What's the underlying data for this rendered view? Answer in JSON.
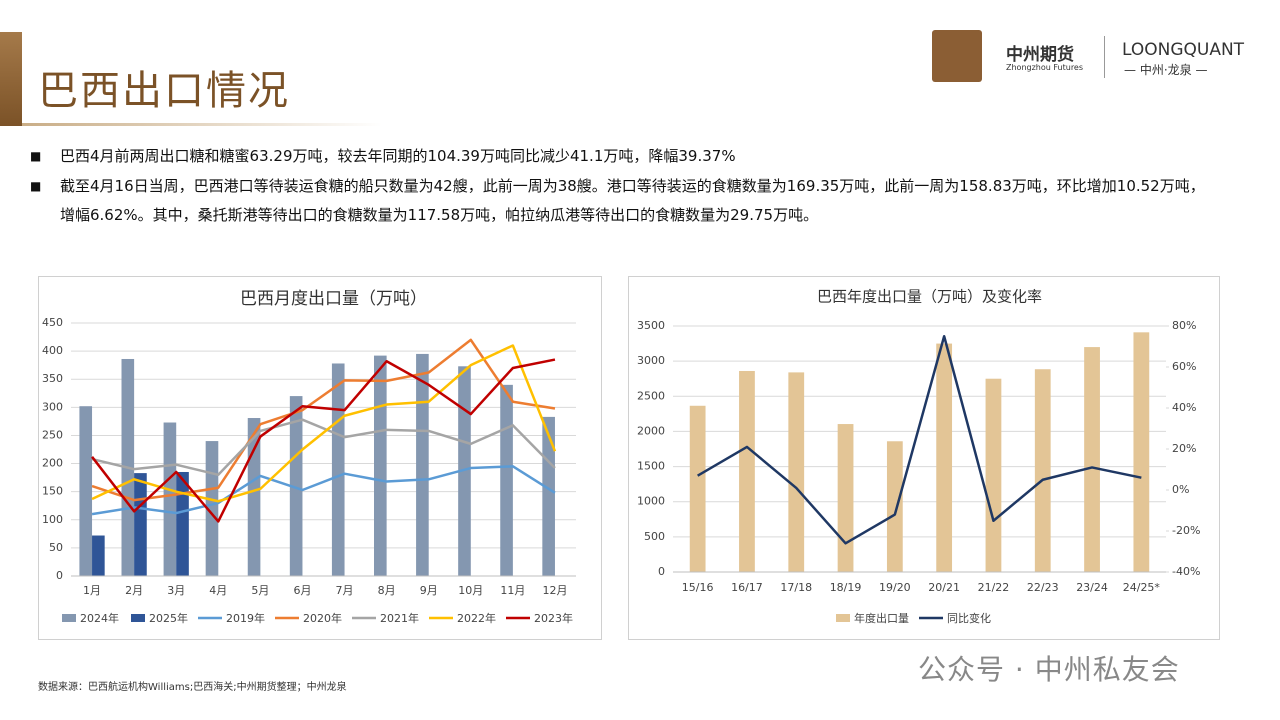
{
  "header": {
    "title": "巴西出口情况",
    "logo_cn": "中州期货",
    "logo_en": "Zhongzhou Futures",
    "brand": "LOONGQUANT",
    "brand_sub": "— 中州·龙泉 —"
  },
  "bullets": [
    "巴西4月前两周出口糖和糖蜜63.29万吨，较去年同期的104.39万吨同比减少41.1万吨，降幅39.37%",
    "截至4月16日当周，巴西港口等待装运食糖的船只数量为42艘，此前一周为38艘。港口等待装运的食糖数量为169.35万吨，此前一周为158.83万吨，环比增加10.52万吨，增幅6.62%。其中，桑托斯港等待出口的食糖数量为117.58万吨，帕拉纳瓜港等待出口的食糖数量为29.75万吨。"
  ],
  "source": "数据来源：巴西航运机构Williams;巴西海关;中州期货整理；中州龙泉",
  "watermark": "公众号 · 中州私友会",
  "chart_data": [
    {
      "type": "combo",
      "title": "巴西月度出口量（万吨）",
      "categories": [
        "1月",
        "2月",
        "3月",
        "4月",
        "5月",
        "6月",
        "7月",
        "8月",
        "9月",
        "10月",
        "11月",
        "12月"
      ],
      "ylim": [
        0,
        450
      ],
      "yticks": [
        0,
        50,
        100,
        150,
        200,
        250,
        300,
        350,
        400,
        450
      ],
      "grid": true,
      "series": [
        {
          "name": "2024年",
          "type": "bar",
          "color": "#8497b0",
          "values": [
            302,
            386,
            273,
            240,
            281,
            320,
            378,
            392,
            395,
            373,
            340,
            283
          ]
        },
        {
          "name": "2025年",
          "type": "bar",
          "color": "#2f5597",
          "values": [
            72,
            183,
            185,
            null,
            null,
            null,
            null,
            null,
            null,
            null,
            null,
            null
          ]
        },
        {
          "name": "2019年",
          "type": "line",
          "color": "#5b9bd5",
          "values": [
            110,
            122,
            112,
            130,
            178,
            153,
            182,
            168,
            172,
            192,
            195,
            148
          ]
        },
        {
          "name": "2020年",
          "type": "line",
          "color": "#ed7d31",
          "values": [
            160,
            135,
            145,
            157,
            270,
            295,
            348,
            347,
            362,
            420,
            310,
            298
          ]
        },
        {
          "name": "2021年",
          "type": "line",
          "color": "#a5a5a5",
          "values": [
            208,
            190,
            198,
            180,
            258,
            278,
            247,
            260,
            258,
            235,
            268,
            192
          ]
        },
        {
          "name": "2022年",
          "type": "line",
          "color": "#ffc000",
          "values": [
            137,
            172,
            150,
            133,
            155,
            225,
            285,
            305,
            310,
            375,
            410,
            222
          ]
        },
        {
          "name": "2023年",
          "type": "line",
          "color": "#c00000",
          "values": [
            212,
            115,
            185,
            97,
            248,
            302,
            295,
            382,
            340,
            288,
            370,
            385
          ]
        }
      ]
    },
    {
      "type": "combo",
      "title": "巴西年度出口量（万吨）及变化率",
      "categories": [
        "15/16",
        "16/17",
        "17/18",
        "18/19",
        "19/20",
        "20/21",
        "21/22",
        "22/23",
        "23/24",
        "24/25*"
      ],
      "ylim": [
        0,
        3500
      ],
      "yticks": [
        0,
        500,
        1000,
        1500,
        2000,
        2500,
        3000,
        3500
      ],
      "grid": true,
      "y2lim": [
        -40,
        80
      ],
      "y2ticks": [
        {
          "value": -40,
          "label": "-40%"
        },
        {
          "value": -20,
          "label": "-20%"
        },
        {
          "value": 0,
          "label": "0%"
        },
        {
          "value": 20,
          "label": "20%"
        },
        {
          "value": 40,
          "label": "40%"
        },
        {
          "value": 60,
          "label": "60%"
        },
        {
          "value": 80,
          "label": "80%"
        }
      ],
      "series": [
        {
          "name": "年度出口量",
          "type": "bar",
          "color": "#e3c596",
          "values": [
            2365,
            2860,
            2840,
            2105,
            1860,
            3250,
            2750,
            2885,
            3200,
            3410
          ]
        },
        {
          "name": "同比变化",
          "type": "line",
          "axis": "y2",
          "color": "#1f3864",
          "values": [
            7,
            21,
            1,
            -26,
            -12,
            75,
            -15,
            5,
            11,
            6
          ]
        }
      ]
    }
  ]
}
